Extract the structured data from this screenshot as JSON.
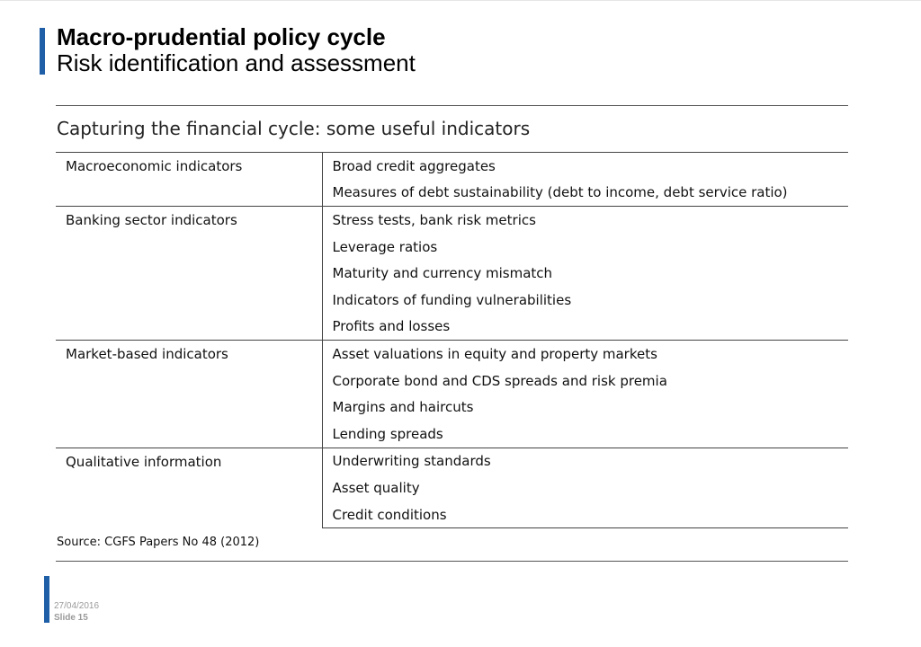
{
  "slide": {
    "title": "Macro-prudential policy cycle",
    "subtitle": "Risk identification and assessment"
  },
  "table": {
    "title": "Capturing the financial cycle: some useful indicators",
    "groups": [
      {
        "category": "Macroeconomic indicators",
        "items": [
          "Broad credit aggregates",
          "Measures of debt sustainability (debt to income, debt service ratio)"
        ]
      },
      {
        "category": "Banking sector indicators",
        "items": [
          "Stress tests, bank risk metrics",
          "Leverage ratios",
          "Maturity and currency mismatch",
          "Indicators of funding vulnerabilities",
          "Profits and losses"
        ]
      },
      {
        "category": "Market-based indicators",
        "items": [
          "Asset valuations in equity and property markets",
          "Corporate bond and CDS spreads and risk premia",
          "Margins and haircuts",
          "Lending spreads"
        ]
      },
      {
        "category": "Qualitative information",
        "items": [
          "Underwriting standards",
          "Asset quality",
          "Credit conditions"
        ]
      }
    ],
    "source": "Source: CGFS Papers No 48 (2012)"
  },
  "footer": {
    "date": "27/04/2016",
    "slide_number": "Slide 15"
  },
  "colors": {
    "accent": "#1f5fa8",
    "rule": "#444444",
    "footer_text": "#9a9a9a"
  }
}
